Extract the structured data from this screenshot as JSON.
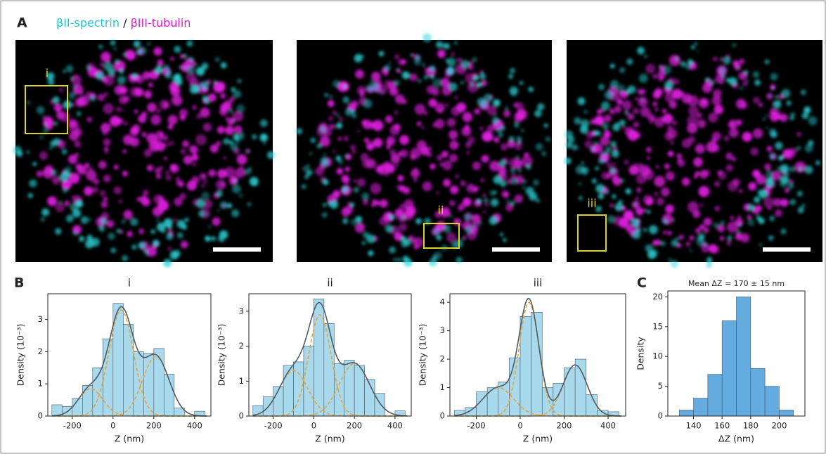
{
  "panel_a": {
    "label": "A",
    "legend": [
      {
        "text": "βII-spectrin",
        "color": "#22c8d4"
      },
      {
        "text": " / ",
        "color": "#222222"
      },
      {
        "text": "βIII-tubulin",
        "color": "#d81fd4"
      }
    ],
    "roi_labels": [
      "i",
      "ii",
      "iii"
    ]
  },
  "panel_b": {
    "label": "B"
  },
  "panel_c": {
    "label": "C"
  },
  "chart_data": [
    {
      "type": "histogram",
      "title": "i",
      "xlabel": "Z (nm)",
      "ylabel": "Density (10⁻³)",
      "color": "#a9d9ec",
      "fit_color": "#e8a23a",
      "sum_color": "#4d5d6a",
      "bins": [
        -300,
        -250,
        -200,
        -150,
        -100,
        -50,
        0,
        50,
        100,
        150,
        200,
        250,
        300,
        350,
        400,
        450
      ],
      "values": [
        0.35,
        0.3,
        0.55,
        0.95,
        1.5,
        2.4,
        3.5,
        2.85,
        2.0,
        1.95,
        2.1,
        1.3,
        0.25,
        0,
        0.15
      ],
      "fits": [
        {
          "mu": -110,
          "sigma": 60,
          "amp": 0.85
        },
        {
          "mu": 40,
          "sigma": 60,
          "amp": 3.3
        },
        {
          "mu": 210,
          "sigma": 65,
          "amp": 1.85
        }
      ],
      "xlim": [
        -320,
        480
      ],
      "ylim": [
        0,
        3.8
      ],
      "xticks": [
        -200,
        0,
        200,
        400
      ],
      "yticks": [
        0,
        1,
        2,
        3
      ]
    },
    {
      "type": "histogram",
      "title": "ii",
      "xlabel": "Z (nm)",
      "ylabel": "Density (10⁻³)",
      "color": "#a9d9ec",
      "fit_color": "#e8a23a",
      "sum_color": "#4d5d6a",
      "bins": [
        -300,
        -250,
        -200,
        -150,
        -100,
        -50,
        0,
        50,
        100,
        150,
        200,
        250,
        300,
        350,
        400,
        450
      ],
      "values": [
        0.3,
        0.55,
        0.85,
        1.45,
        1.55,
        2.0,
        3.35,
        2.65,
        1.5,
        1.6,
        1.45,
        1.05,
        0.65,
        0,
        0.15
      ],
      "fits": [
        {
          "mu": -100,
          "sigma": 70,
          "amp": 1.3
        },
        {
          "mu": 30,
          "sigma": 55,
          "amp": 2.9
        },
        {
          "mu": 200,
          "sigma": 75,
          "amp": 1.5
        }
      ],
      "xlim": [
        -320,
        480
      ],
      "ylim": [
        0,
        3.5
      ],
      "xticks": [
        -200,
        0,
        200,
        400
      ],
      "yticks": [
        0,
        1,
        2,
        3
      ]
    },
    {
      "type": "histogram",
      "title": "iii",
      "xlabel": "Z (nm)",
      "ylabel": "Density (10⁻³)",
      "color": "#a9d9ec",
      "fit_color": "#e8a23a",
      "sum_color": "#4d5d6a",
      "bins": [
        -300,
        -250,
        -200,
        -150,
        -100,
        -50,
        0,
        50,
        100,
        150,
        200,
        250,
        300,
        350,
        400,
        450
      ],
      "values": [
        0.2,
        0.3,
        0.85,
        1.0,
        1.2,
        2.05,
        3.5,
        3.65,
        1.0,
        1.15,
        1.7,
        2.0,
        0.75,
        0.2,
        0.15
      ],
      "fits": [
        {
          "mu": -100,
          "sigma": 70,
          "amp": 1.0
        },
        {
          "mu": 40,
          "sigma": 45,
          "amp": 4.0
        },
        {
          "mu": 250,
          "sigma": 55,
          "amp": 1.8
        }
      ],
      "xlim": [
        -320,
        480
      ],
      "ylim": [
        0,
        4.3
      ],
      "xticks": [
        -200,
        0,
        200,
        400
      ],
      "yticks": [
        0,
        1,
        2,
        3,
        4
      ]
    },
    {
      "type": "histogram",
      "title": "Mean ΔZ = 170 ± 15 nm",
      "xlabel": "ΔZ (nm)",
      "ylabel": "Density",
      "color": "#64ace0",
      "bins": [
        130,
        140,
        150,
        160,
        170,
        180,
        190,
        200,
        210
      ],
      "values": [
        1,
        3,
        7,
        16,
        20,
        8,
        5,
        1
      ],
      "xlim": [
        122,
        218
      ],
      "ylim": [
        0,
        21
      ],
      "xticks": [
        140,
        160,
        180,
        200
      ],
      "yticks": [
        0,
        5,
        10,
        15,
        20
      ]
    }
  ]
}
